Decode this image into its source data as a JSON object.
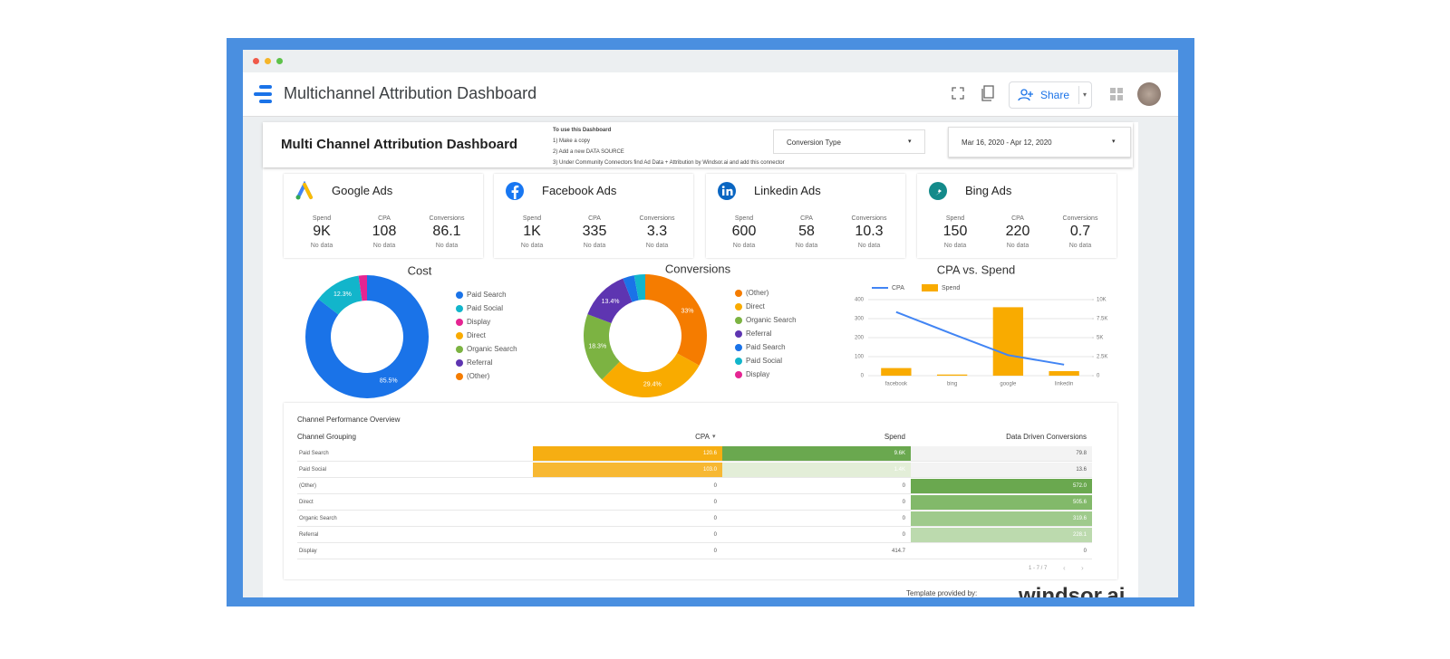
{
  "app_title": "Multichannel Attribution Dashboard",
  "share": "Share",
  "dashboard": {
    "title": "Multi Channel Attribution Dashboard",
    "instructions": [
      "To use this Dashboard",
      "1) Make a copy",
      "2) Add a new DATA SOURCE",
      "3) Under Community Connectors find Ad Data + Attribution by Windsor.ai and add this connector"
    ],
    "filters": [
      "Conversion Type",
      "Mar 16, 2020 - Apr 12, 2020"
    ]
  },
  "cards": [
    {
      "name": "Google Ads",
      "metrics": [
        {
          "label": "Spend",
          "value": "9K",
          "note": "No data"
        },
        {
          "label": "CPA",
          "value": "108",
          "note": "No data"
        },
        {
          "label": "Conversions",
          "value": "86.1",
          "note": "No data"
        }
      ]
    },
    {
      "name": "Facebook Ads",
      "metrics": [
        {
          "label": "Spend",
          "value": "1K",
          "note": "No data"
        },
        {
          "label": "CPA",
          "value": "335",
          "note": "No data"
        },
        {
          "label": "Conversions",
          "value": "3.3",
          "note": "No data"
        }
      ]
    },
    {
      "name": "Linkedin Ads",
      "metrics": [
        {
          "label": "Spend",
          "value": "600",
          "note": "No data"
        },
        {
          "label": "CPA",
          "value": "58",
          "note": "No data"
        },
        {
          "label": "Conversions",
          "value": "10.3",
          "note": "No data"
        }
      ]
    },
    {
      "name": "Bing Ads",
      "metrics": [
        {
          "label": "Spend",
          "value": "150",
          "note": "No data"
        },
        {
          "label": "CPA",
          "value": "220",
          "note": "No data"
        },
        {
          "label": "Conversions",
          "value": "0.7",
          "note": "No data"
        }
      ]
    }
  ],
  "chart_data": [
    {
      "type": "donut",
      "title": "Cost",
      "categories": [
        "Paid Search",
        "Paid Social",
        "Display",
        "Direct",
        "Organic Search",
        "Referral",
        "(Other)"
      ],
      "values": [
        85.5,
        12.3,
        2.2,
        0,
        0,
        0,
        0
      ],
      "value_labels": [
        "85.5%",
        "12.3%",
        null,
        null,
        null,
        null,
        null
      ],
      "colors": [
        "#1a73e8",
        "#12b5cb",
        "#e52592",
        "#f9ab00",
        "#7cb342",
        "#5e35b1",
        "#f57c00"
      ]
    },
    {
      "type": "donut",
      "title": "Conversions",
      "categories": [
        "(Other)",
        "Direct",
        "Organic Search",
        "Referral",
        "Paid Search",
        "Paid Social",
        "Display"
      ],
      "values": [
        33,
        29.4,
        18.3,
        13.4,
        3,
        2.9,
        0
      ],
      "value_labels": [
        "33%",
        "29.4%",
        "18.3%",
        "13.4%",
        null,
        null,
        null
      ],
      "colors": [
        "#f57c00",
        "#f9ab00",
        "#7cb342",
        "#5e35b1",
        "#1a73e8",
        "#12b5cb",
        "#e52592"
      ]
    },
    {
      "type": "combo",
      "title": "CPA vs. Spend",
      "categories": [
        "facebook",
        "bing",
        "google",
        "linkedin"
      ],
      "series": [
        {
          "name": "CPA",
          "type": "line",
          "color": "#4285f4",
          "values": [
            335,
            220,
            108,
            58
          ]
        },
        {
          "name": "Spend",
          "type": "bar",
          "color": "#f9ab00",
          "axis": "y2",
          "values": [
            1000,
            150,
            9000,
            600
          ]
        }
      ],
      "ylim": [
        0,
        400
      ],
      "yticks": [
        0,
        100,
        200,
        300,
        400
      ],
      "y2lim": [
        0,
        10000
      ],
      "y2ticks": [
        {
          "value": 0,
          "label": "0"
        },
        {
          "value": 2500,
          "label": "2.5K"
        },
        {
          "value": 5000,
          "label": "5K"
        },
        {
          "value": 7500,
          "label": "7.5K"
        },
        {
          "value": 10000,
          "label": "10K"
        }
      ],
      "grid": true
    }
  ],
  "table": {
    "title": "Channel Performance Overview",
    "headers": [
      "Channel Grouping",
      "CPA",
      "Spend",
      "Data Driven Conversions"
    ],
    "rows": [
      [
        "Paid Search",
        "120.6",
        "9.6K",
        "79.8"
      ],
      [
        "Paid Social",
        "103.0",
        "1.4K",
        "13.6"
      ],
      [
        "(Other)",
        "0",
        "0",
        "572.0"
      ],
      [
        "Direct",
        "0",
        "0",
        "505.6"
      ],
      [
        "Organic Search",
        "0",
        "0",
        "319.6"
      ],
      [
        "Referral",
        "0",
        "0",
        "228.1"
      ],
      [
        "Display",
        "0",
        "414.7",
        "0"
      ]
    ],
    "pagination": "1 - 7 / 7"
  },
  "footer": {
    "note": "Template provided by:",
    "brand": "windsor.ai"
  }
}
